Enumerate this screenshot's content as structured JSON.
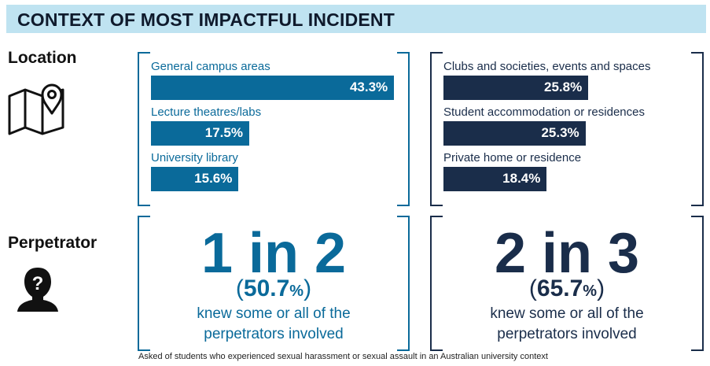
{
  "title": "CONTEXT OF MOST IMPACTFUL INCIDENT",
  "colors": {
    "title_bg": "#bfe3f1",
    "blue": "#0a6a9a",
    "navy": "#1a2d4a"
  },
  "sections": {
    "location": {
      "label": "Location",
      "icon": "map-pin-icon"
    },
    "perpetrator": {
      "label": "Perpetrator",
      "icon": "person-question-icon"
    }
  },
  "chart_data": {
    "type": "bar",
    "unit": "%",
    "panels": [
      {
        "color": "#0a6a9a",
        "categories": [
          "General campus areas",
          "Lecture theatres/labs",
          "University library"
        ],
        "values": [
          43.3,
          17.5,
          15.6
        ],
        "value_labels": [
          "43.3%",
          "17.5%",
          "15.6%"
        ]
      },
      {
        "color": "#1a2d4a",
        "categories": [
          "Clubs and societies, events and spaces",
          "Student accommodation or residences",
          "Private home or residence"
        ],
        "values": [
          25.8,
          25.3,
          18.4
        ],
        "value_labels": [
          "25.8%",
          "25.3%",
          "18.4%"
        ]
      }
    ]
  },
  "perpetrator_stats": [
    {
      "headline": "1 in 2",
      "value": "50.7",
      "desc_line1": "knew some or all of the",
      "desc_line2": "perpetrators involved"
    },
    {
      "headline": "2 in 3",
      "value": "65.7",
      "desc_line1": "knew some or all of the",
      "desc_line2": "perpetrators involved"
    }
  ],
  "symbols": {
    "open": "(",
    "close": ")",
    "percent": "%"
  },
  "footnote": "Asked of students who experienced sexual harassment or sexual assault in an Australian university context"
}
